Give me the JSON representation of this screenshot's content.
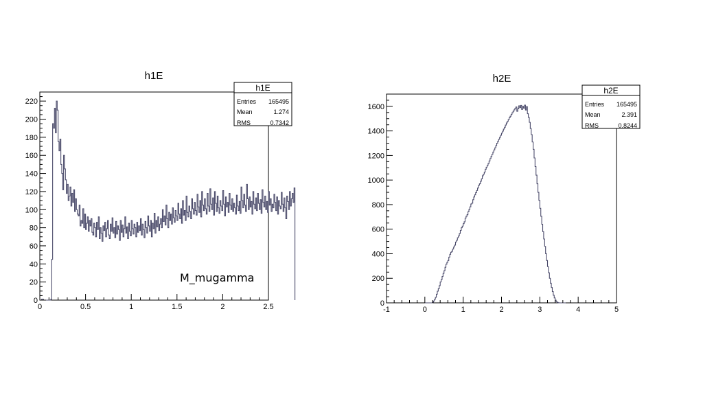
{
  "chart_data": [
    {
      "type": "histogram",
      "title": "h1E",
      "annotation": "M_mugamma",
      "stats": {
        "name": "h1E",
        "entries_label": "Entries",
        "entries": "165495",
        "mean_label": "Mean",
        "mean": "1.274",
        "rms_label": "RMS",
        "rms": "0.7342"
      },
      "xlim": [
        0,
        2.5
      ],
      "ylim": [
        0,
        230
      ],
      "xticks": [
        0,
        0.5,
        1,
        1.5,
        2,
        2.5
      ],
      "xtick_labels": [
        "0",
        "0.5",
        "1",
        "1.5",
        "2",
        "2.5"
      ],
      "yticks": [
        0,
        20,
        40,
        60,
        80,
        100,
        120,
        140,
        160,
        180,
        200,
        220
      ],
      "yticks_labels": [
        "0",
        "20",
        "40",
        "60",
        "80",
        "100",
        "120",
        "140",
        "160",
        "180",
        "200",
        "220"
      ],
      "bin_width": 0.01,
      "x_start": 0.0,
      "values": [
        0,
        0,
        1,
        1,
        0,
        0,
        0,
        0,
        0,
        0,
        0,
        0,
        1,
        45,
        195,
        190,
        212,
        185,
        220,
        210,
        175,
        165,
        178,
        150,
        140,
        122,
        160,
        145,
        133,
        118,
        128,
        110,
        115,
        125,
        104,
        118,
        108,
        122,
        98,
        112,
        100,
        95,
        93,
        105,
        82,
        88,
        85,
        101,
        80,
        95,
        78,
        85,
        92,
        76,
        88,
        82,
        90,
        75,
        72,
        85,
        80,
        70,
        86,
        78,
        92,
        68,
        80,
        74,
        65,
        82,
        77,
        86,
        70,
        79,
        88,
        72,
        68,
        84,
        76,
        91,
        74,
        80,
        69,
        87,
        73,
        82,
        78,
        66,
        88,
        75,
        83,
        70,
        79,
        92,
        74,
        81,
        68,
        85,
        76,
        71,
        88,
        79,
        73,
        84,
        80,
        70,
        86,
        75,
        82,
        77,
        90,
        72,
        84,
        78,
        69,
        87,
        80,
        74,
        93,
        82,
        76,
        88,
        70,
        85,
        79,
        96,
        74,
        88,
        81,
        92,
        77,
        84,
        90,
        80,
        100,
        87,
        93,
        83,
        105,
        90,
        80,
        97,
        88,
        95,
        84,
        102,
        91,
        86,
        99,
        93,
        88,
        107,
        95,
        90,
        101,
        85,
        110,
        94,
        99,
        88,
        115,
        97,
        92,
        104,
        98,
        90,
        112,
        101,
        95,
        108,
        99,
        94,
        117,
        103,
        97,
        110,
        92,
        120,
        105,
        99,
        112,
        101,
        95,
        118,
        104,
        98,
        123,
        106,
        100,
        113,
        94,
        120,
        107,
        98,
        115,
        102,
        96,
        110,
        104,
        99,
        121,
        106,
        93,
        114,
        103,
        108,
        97,
        118,
        105,
        100,
        112,
        98,
        107,
        102,
        95,
        116,
        104,
        99,
        109,
        96,
        125,
        110,
        102,
        117,
        105,
        98,
        128,
        112,
        100,
        114,
        103,
        109,
        95,
        120,
        106,
        101,
        113,
        99,
        118,
        107,
        100,
        111,
        96,
        122,
        108,
        103,
        115,
        100,
        109,
        97,
        120,
        105,
        112,
        98,
        106,
        102,
        117,
        108,
        99,
        114,
        95,
        110,
        104,
        101,
        119,
        106,
        98,
        113,
        102,
        90,
        115,
        109,
        100,
        120,
        104,
        112,
        118,
        108,
        124
      ]
    },
    {
      "type": "histogram",
      "title": "h2E",
      "stats": {
        "name": "h2E",
        "entries_label": "Entries",
        "entries": "165495",
        "mean_label": "Mean",
        "mean": "2.391",
        "rms_label": "RMS",
        "rms": "0.8244"
      },
      "xlim": [
        -1,
        5
      ],
      "ylim": [
        0,
        1700
      ],
      "xticks": [
        -1,
        0,
        1,
        2,
        3,
        4,
        5
      ],
      "xtick_labels": [
        "-1",
        "0",
        "1",
        "2",
        "3",
        "4",
        "5"
      ],
      "yticks": [
        0,
        200,
        400,
        600,
        800,
        1000,
        1200,
        1400,
        1600
      ],
      "yticks_labels": [
        "0",
        "200",
        "400",
        "600",
        "800",
        "1000",
        "1200",
        "1400",
        "1600"
      ],
      "bin_width": 0.025,
      "x_start": 0.0,
      "values": [
        0,
        0,
        0,
        0,
        0,
        0,
        0,
        0,
        5,
        15,
        30,
        45,
        70,
        95,
        115,
        140,
        170,
        190,
        215,
        240,
        262,
        290,
        315,
        330,
        345,
        372,
        395,
        412,
        420,
        438,
        455,
        470,
        495,
        510,
        530,
        545,
        565,
        590,
        612,
        625,
        645,
        660,
        690,
        705,
        718,
        742,
        760,
        782,
        805,
        812,
        840,
        862,
        880,
        898,
        915,
        935,
        958,
        970,
        990,
        1010,
        1035,
        1048,
        1065,
        1088,
        1105,
        1120,
        1135,
        1155,
        1175,
        1192,
        1210,
        1228,
        1245,
        1262,
        1280,
        1300,
        1315,
        1332,
        1348,
        1365,
        1382,
        1398,
        1415,
        1430,
        1448,
        1465,
        1478,
        1492,
        1508,
        1520,
        1535,
        1548,
        1560,
        1572,
        1585,
        1595,
        1560,
        1580,
        1605,
        1590,
        1608,
        1575,
        1600,
        1585,
        1610,
        1570,
        1598,
        1540,
        1510,
        1470,
        1420,
        1370,
        1310,
        1250,
        1180,
        1110,
        1040,
        970,
        900,
        835,
        770,
        705,
        640,
        580,
        520,
        460,
        400,
        345,
        295,
        245,
        200,
        160,
        125,
        92,
        62,
        40,
        22,
        10,
        4,
        1,
        0,
        0,
        0,
        0,
        0,
        0,
        0
      ]
    }
  ]
}
